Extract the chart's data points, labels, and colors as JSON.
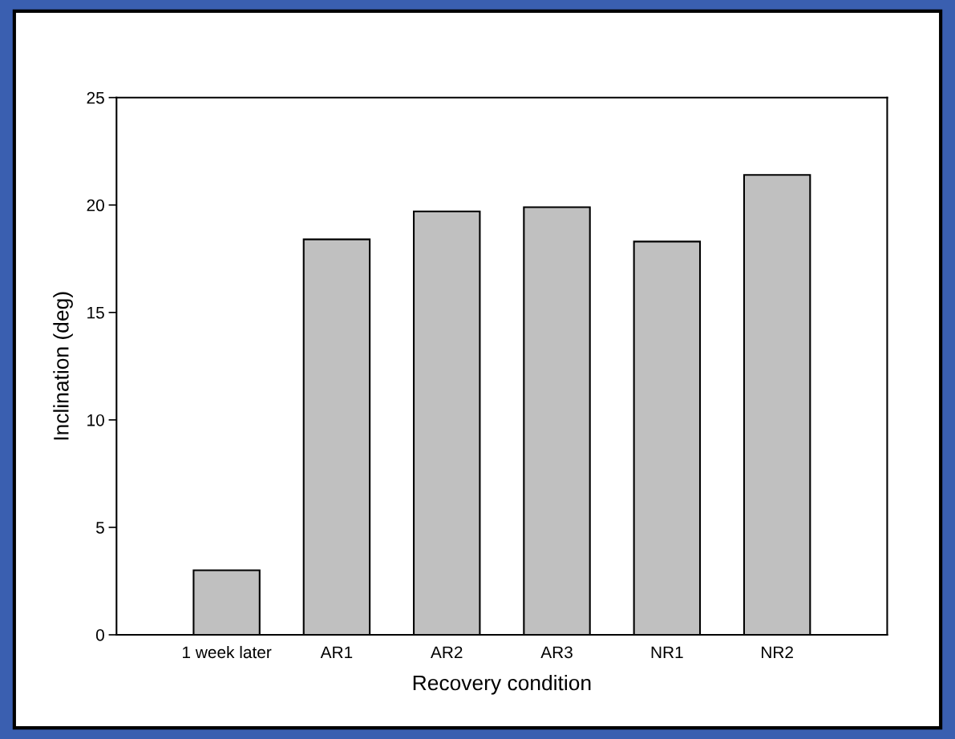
{
  "chart_data": {
    "type": "bar",
    "xlabel": "Recovery condition",
    "ylabel": "Inclination (deg)",
    "categories": [
      "1 week later",
      "AR1",
      "AR2",
      "AR3",
      "NR1",
      "NR2"
    ],
    "values": [
      3.0,
      18.4,
      19.7,
      19.9,
      18.3,
      21.4
    ],
    "color": "#c0c0c0",
    "ylim": [
      0,
      25
    ],
    "yticks": [
      0,
      5,
      10,
      15,
      20,
      25
    ],
    "grid": false,
    "legend": false
  }
}
